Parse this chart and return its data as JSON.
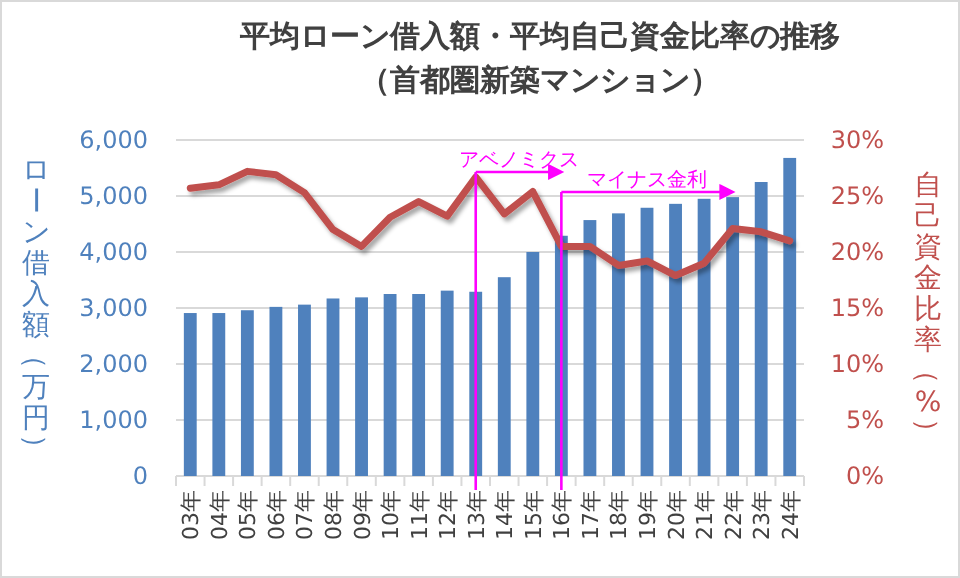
{
  "chart_data": {
    "type": "bar",
    "title": "平均ローン借入額・平均自己資金比率の推移",
    "subtitle": "（首都圏新築マンション）",
    "ylabel": "ローン借入額（万円）",
    "y2label": "自己資金比率（%）",
    "categories": [
      "03年",
      "04年",
      "05年",
      "06年",
      "07年",
      "08年",
      "09年",
      "10年",
      "11年",
      "12年",
      "13年",
      "14年",
      "15年",
      "16年",
      "17年",
      "18年",
      "19年",
      "20年",
      "21年",
      "22年",
      "23年",
      "24年"
    ],
    "series": [
      {
        "name": null,
        "color": "#4f81bd",
        "values": [
          2910,
          2910,
          2960,
          3020,
          3060,
          3170,
          3190,
          3250,
          3250,
          3310,
          3290,
          3550,
          4000,
          4290,
          4570,
          4690,
          4790,
          4860,
          4950,
          4980,
          5250,
          5680
        ]
      },
      {
        "name": null,
        "type": "line",
        "axis": "y2",
        "color": "#c0504d",
        "values": [
          25.7,
          26.0,
          27.2,
          26.9,
          25.3,
          22.0,
          20.5,
          23.1,
          24.5,
          23.2,
          26.7,
          23.4,
          25.4,
          20.5,
          20.5,
          18.8,
          19.2,
          17.9,
          19.0,
          22.1,
          21.8,
          21.0
        ]
      }
    ],
    "ylim": [
      0,
      6000
    ],
    "yticks": [
      {
        "value": 0,
        "label": "0"
      },
      {
        "value": 1000,
        "label": "1,000"
      },
      {
        "value": 2000,
        "label": "2,000"
      },
      {
        "value": 3000,
        "label": "3,000"
      },
      {
        "value": 4000,
        "label": "4,000"
      },
      {
        "value": 5000,
        "label": "5,000"
      },
      {
        "value": 6000,
        "label": "6,000"
      }
    ],
    "y2lim": [
      0,
      30
    ],
    "y2ticks": [
      {
        "value": 0,
        "label": "0%"
      },
      {
        "value": 5,
        "label": "5%"
      },
      {
        "value": 10,
        "label": "10%"
      },
      {
        "value": 15,
        "label": "15%"
      },
      {
        "value": 20,
        "label": "20%"
      },
      {
        "value": 25,
        "label": "25%"
      },
      {
        "value": 30,
        "label": "30%"
      }
    ],
    "grid": "y",
    "marker": "none",
    "line_style": "solid",
    "ref_lines": [
      {
        "axis": "x",
        "value": "13年",
        "label": "アベノミクス",
        "color": "#ff00ff"
      },
      {
        "axis": "x",
        "value": "16年",
        "label": "マイナス金利",
        "color": "#ff00ff"
      }
    ]
  }
}
